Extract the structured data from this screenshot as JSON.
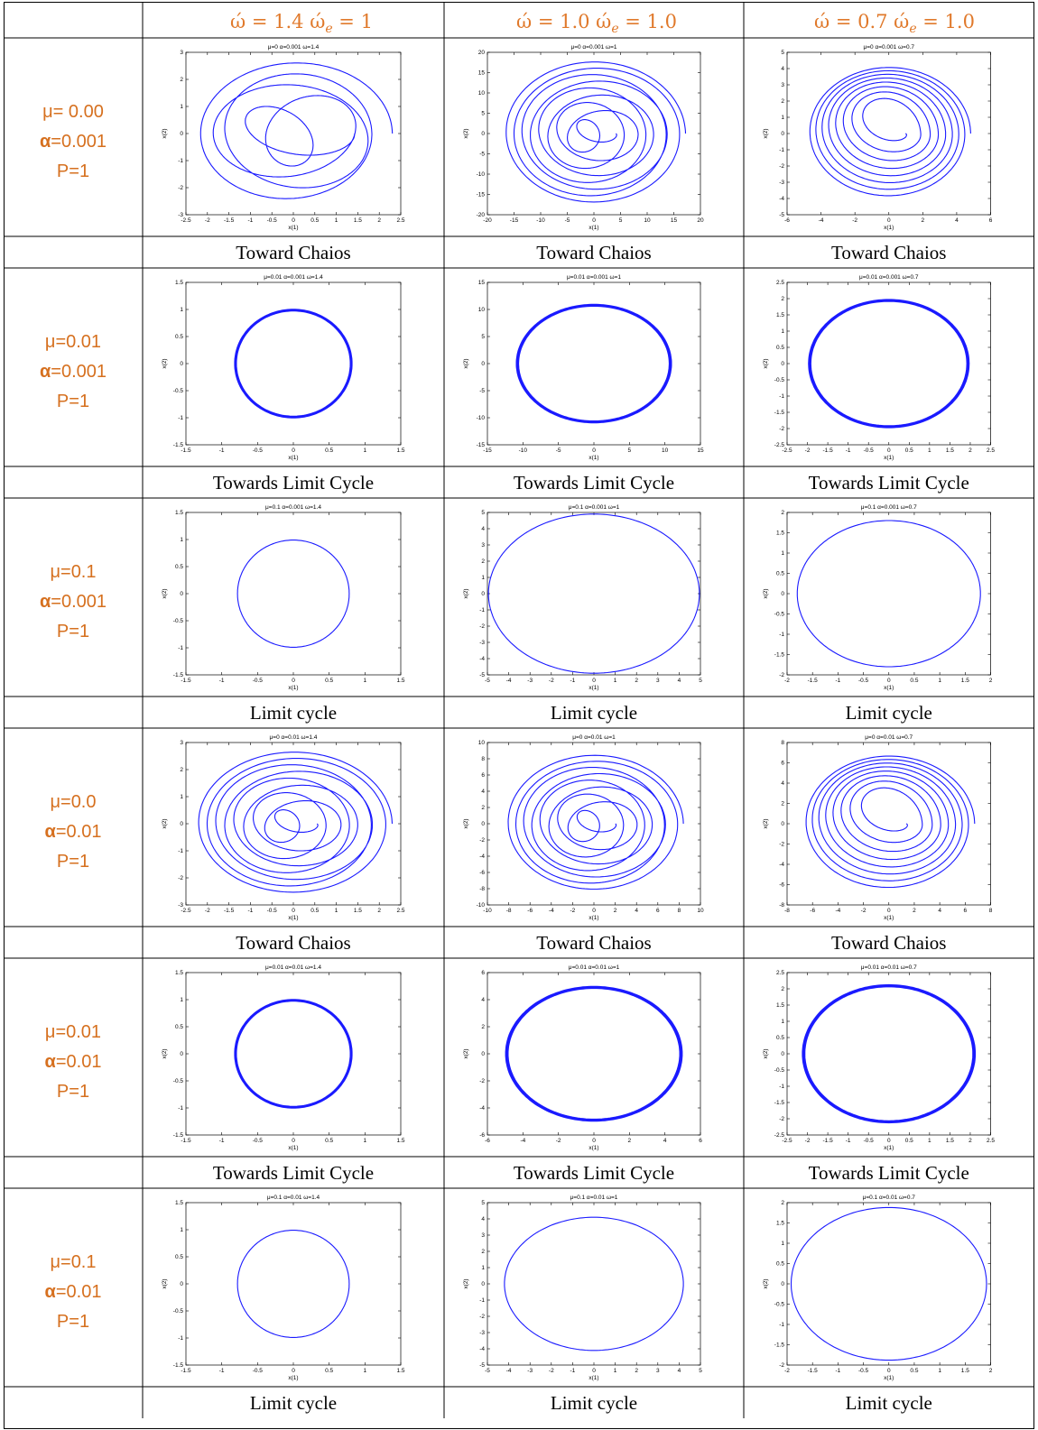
{
  "header": {
    "col1": "ώ = 1.4  ώe = 1",
    "col2": "ώ = 1.0  ώe = 1.0",
    "col3": "ώ = 0.7  ώe = 1.0"
  },
  "rows": [
    {
      "mu": "μ= 0.00",
      "alpha_sym": "α",
      "alpha_val": "=0.001",
      "p": "P=1",
      "captions": [
        "Toward Chaios",
        "Toward Chaios",
        "Toward Chaios"
      ],
      "plots": [
        {
          "title": "μ=0  α=0.001  ω=1.4",
          "xlim": [
            -2.5,
            2.5
          ],
          "ylim": [
            -3,
            3
          ],
          "xticks": [
            "-2.5",
            "-2",
            "-1.5",
            "-1",
            "-0.5",
            "0",
            "0.5",
            "1",
            "1.5",
            "2",
            "2.5"
          ],
          "yticks": [
            "-3",
            "-2",
            "-1",
            "0",
            "1",
            "2",
            "3"
          ],
          "xlabel": "x(1)",
          "ylabel": "x(2)"
        },
        {
          "title": "μ=0  α=0.001  ω=1",
          "xlim": [
            -20,
            20
          ],
          "ylim": [
            -20,
            20
          ],
          "xticks": [
            "-20",
            "-15",
            "-10",
            "-5",
            "0",
            "5",
            "10",
            "15",
            "20"
          ],
          "yticks": [
            "-20",
            "-15",
            "-10",
            "-5",
            "0",
            "5",
            "10",
            "15",
            "20"
          ],
          "xlabel": "x(1)",
          "ylabel": "x(2)"
        },
        {
          "title": "μ=0  α=0.001  ω=0.7",
          "xlim": [
            -6,
            6
          ],
          "ylim": [
            -5,
            5
          ],
          "xticks": [
            "-6",
            "-4",
            "-2",
            "0",
            "2",
            "4",
            "6"
          ],
          "yticks": [
            "-5",
            "-4",
            "-3",
            "-2",
            "-1",
            "0",
            "1",
            "2",
            "3",
            "4",
            "5"
          ],
          "xlabel": "x(1)",
          "ylabel": "x(2)"
        }
      ]
    },
    {
      "mu": "μ=0.01",
      "alpha_sym": "α",
      "alpha_val": "=0.001",
      "p": "P=1",
      "captions": [
        "Towards Limit Cycle",
        "Towards Limit Cycle",
        "Towards Limit Cycle"
      ],
      "plots": [
        {
          "title": "μ=0.01  α=0.001  ω=1.4",
          "xlim": [
            -1.5,
            1.5
          ],
          "ylim": [
            -1.5,
            1.5
          ],
          "xticks": [
            "-1.5",
            "-1",
            "-0.5",
            "0",
            "0.5",
            "1",
            "1.5"
          ],
          "yticks": [
            "-1.5",
            "-1",
            "-0.5",
            "0",
            "0.5",
            "1",
            "1.5"
          ],
          "xlabel": "x(1)",
          "ylabel": "x(2)"
        },
        {
          "title": "μ=0.01  α=0.001  ω=1",
          "xlim": [
            -15,
            15
          ],
          "ylim": [
            -15,
            15
          ],
          "xticks": [
            "-15",
            "-10",
            "-5",
            "0",
            "5",
            "10",
            "15"
          ],
          "yticks": [
            "-15",
            "-10",
            "-5",
            "0",
            "5",
            "10",
            "15"
          ],
          "xlabel": "x(1)",
          "ylabel": "x(2)"
        },
        {
          "title": "μ=0.01  α=0.001  ω=0.7",
          "xlim": [
            -2.5,
            2.5
          ],
          "ylim": [
            -2.5,
            2.5
          ],
          "xticks": [
            "-2.5",
            "-2",
            "-1.5",
            "-1",
            "-0.5",
            "0",
            "0.5",
            "1",
            "1.5",
            "2",
            "2.5"
          ],
          "yticks": [
            "-2.5",
            "-2",
            "-1.5",
            "-1",
            "-0.5",
            "0",
            "0.5",
            "1",
            "1.5",
            "2",
            "2.5"
          ],
          "xlabel": "x(1)",
          "ylabel": "x(2)"
        }
      ]
    },
    {
      "mu": "μ=0.1",
      "alpha_sym": "α",
      "alpha_val": "=0.001",
      "p": "P=1",
      "captions": [
        "Limit cycle",
        "Limit cycle",
        "Limit cycle"
      ],
      "plots": [
        {
          "title": "μ=0.1  α=0.001  ω=1.4",
          "xlim": [
            -1.5,
            1.5
          ],
          "ylim": [
            -1.5,
            1.5
          ],
          "xticks": [
            "-1.5",
            "-1",
            "-0.5",
            "0",
            "0.5",
            "1",
            "1.5"
          ],
          "yticks": [
            "-1.5",
            "-1",
            "-0.5",
            "0",
            "0.5",
            "1",
            "1.5"
          ],
          "xlabel": "x(1)",
          "ylabel": "x(2)"
        },
        {
          "title": "μ=0.1  α=0.001  ω=1",
          "xlim": [
            -5,
            5
          ],
          "ylim": [
            -5,
            5
          ],
          "xticks": [
            "-5",
            "-4",
            "-3",
            "-2",
            "-1",
            "0",
            "1",
            "2",
            "3",
            "4",
            "5"
          ],
          "yticks": [
            "-5",
            "-4",
            "-3",
            "-2",
            "-1",
            "0",
            "1",
            "2",
            "3",
            "4",
            "5"
          ],
          "xlabel": "x(1)",
          "ylabel": "x(2)"
        },
        {
          "title": "μ=0.1  α=0.001  ω=0.7",
          "xlim": [
            -2,
            2
          ],
          "ylim": [
            -2,
            2
          ],
          "xticks": [
            "-2",
            "-1.5",
            "-1",
            "-0.5",
            "0",
            "0.5",
            "1",
            "1.5",
            "2"
          ],
          "yticks": [
            "-2",
            "-1.5",
            "-1",
            "-0.5",
            "0",
            "0.5",
            "1",
            "1.5",
            "2"
          ],
          "xlabel": "x(1)",
          "ylabel": "x(2)"
        }
      ]
    },
    {
      "mu": "μ=0.0",
      "alpha_sym": "α",
      "alpha_val": "=0.01",
      "p": "P=1",
      "captions": [
        "Toward Chaios",
        "Toward Chaios",
        "Toward Chaios"
      ],
      "plots": [
        {
          "title": "μ=0  α=0.01  ω=1.4",
          "xlim": [
            -2.5,
            2.5
          ],
          "ylim": [
            -3,
            3
          ],
          "xticks": [
            "-2.5",
            "-2",
            "-1.5",
            "-1",
            "-0.5",
            "0",
            "0.5",
            "1",
            "1.5",
            "2",
            "2.5"
          ],
          "yticks": [
            "-3",
            "-2",
            "-1",
            "0",
            "1",
            "2",
            "3"
          ],
          "xlabel": "x(1)",
          "ylabel": "x(2)"
        },
        {
          "title": "μ=0  α=0.01  ω=1",
          "xlim": [
            -10,
            10
          ],
          "ylim": [
            -10,
            10
          ],
          "xticks": [
            "-10",
            "-8",
            "-6",
            "-4",
            "-2",
            "0",
            "2",
            "4",
            "6",
            "8",
            "10"
          ],
          "yticks": [
            "-10",
            "-8",
            "-6",
            "-4",
            "-2",
            "0",
            "2",
            "4",
            "6",
            "8",
            "10"
          ],
          "xlabel": "x(1)",
          "ylabel": "x(2)"
        },
        {
          "title": "μ=0  α=0.01  ω=0.7",
          "xlim": [
            -8,
            8
          ],
          "ylim": [
            -8,
            8
          ],
          "xticks": [
            "-8",
            "-6",
            "-4",
            "-2",
            "0",
            "2",
            "4",
            "6",
            "8"
          ],
          "yticks": [
            "-8",
            "-6",
            "-4",
            "-2",
            "0",
            "2",
            "4",
            "6",
            "8"
          ],
          "xlabel": "x(1)",
          "ylabel": "x(2)"
        }
      ]
    },
    {
      "mu": "μ=0.01",
      "alpha_sym": "α",
      "alpha_val": "=0.01",
      "p": "P=1",
      "captions": [
        "Towards Limit Cycle",
        "Towards Limit Cycle",
        "Towards Limit Cycle"
      ],
      "plots": [
        {
          "title": "μ=0.01  α=0.01  ω=1.4",
          "xlim": [
            -1.5,
            1.5
          ],
          "ylim": [
            -1.5,
            1.5
          ],
          "xticks": [
            "-1.5",
            "-1",
            "-0.5",
            "0",
            "0.5",
            "1",
            "1.5"
          ],
          "yticks": [
            "-1.5",
            "-1",
            "-0.5",
            "0",
            "0.5",
            "1",
            "1.5"
          ],
          "xlabel": "x(1)",
          "ylabel": "x(2)"
        },
        {
          "title": "μ=0.01  α=0.01  ω=1",
          "xlim": [
            -6,
            6
          ],
          "ylim": [
            -6,
            6
          ],
          "xticks": [
            "-6",
            "-4",
            "-2",
            "0",
            "2",
            "4",
            "6"
          ],
          "yticks": [
            "-6",
            "-4",
            "-2",
            "0",
            "2",
            "4",
            "6"
          ],
          "xlabel": "x(1)",
          "ylabel": "x(2)"
        },
        {
          "title": "μ=0.01  α=0.01  ω=0.7",
          "xlim": [
            -2.5,
            2.5
          ],
          "ylim": [
            -2.5,
            2.5
          ],
          "xticks": [
            "-2.5",
            "-2",
            "-1.5",
            "-1",
            "-0.5",
            "0",
            "0.5",
            "1",
            "1.5",
            "2",
            "2.5"
          ],
          "yticks": [
            "-2.5",
            "-2",
            "-1.5",
            "-1",
            "-0.5",
            "0",
            "0.5",
            "1",
            "1.5",
            "2",
            "2.5"
          ],
          "xlabel": "x(1)",
          "ylabel": "x(2)"
        }
      ]
    },
    {
      "mu": "μ=0.1",
      "alpha_sym": "α",
      "alpha_val": "=0.01",
      "p": "P=1",
      "captions": [
        "Limit cycle",
        "Limit cycle",
        "Limit cycle"
      ],
      "plots": [
        {
          "title": "μ=0.1  α=0.01  ω=1.4",
          "xlim": [
            -1.5,
            1.5
          ],
          "ylim": [
            -1.5,
            1.5
          ],
          "xticks": [
            "-1.5",
            "-1",
            "-0.5",
            "0",
            "0.5",
            "1",
            "1.5"
          ],
          "yticks": [
            "-1.5",
            "-1",
            "-0.5",
            "0",
            "0.5",
            "1",
            "1.5"
          ],
          "xlabel": "x(1)",
          "ylabel": "x(2)"
        },
        {
          "title": "μ=0.1  α=0.01  ω=1",
          "xlim": [
            -5,
            5
          ],
          "ylim": [
            -5,
            5
          ],
          "xticks": [
            "-5",
            "-4",
            "-3",
            "-2",
            "-1",
            "0",
            "1",
            "2",
            "3",
            "4",
            "5"
          ],
          "yticks": [
            "-5",
            "-4",
            "-3",
            "-2",
            "-1",
            "0",
            "1",
            "2",
            "3",
            "4",
            "5"
          ],
          "xlabel": "x(1)",
          "ylabel": "x(2)"
        },
        {
          "title": "μ=0.1  α=0.01  ω=0.7",
          "xlim": [
            -2,
            2
          ],
          "ylim": [
            -2,
            2
          ],
          "xticks": [
            "-2",
            "-1.5",
            "-1",
            "-0.5",
            "0",
            "0.5",
            "1",
            "1.5",
            "2"
          ],
          "yticks": [
            "-2",
            "-1.5",
            "-1",
            "-0.5",
            "0",
            "0.5",
            "1",
            "1.5",
            "2"
          ],
          "xlabel": "x(1)",
          "ylabel": "x(2)"
        }
      ]
    }
  ]
}
